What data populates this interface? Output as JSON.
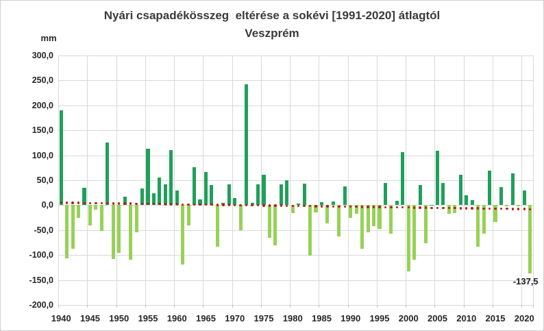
{
  "header": {
    "title": "Nyári csapadékösszeg  eltérése a sokévi [1991-2020] átlagtól",
    "subtitle": "Veszprém",
    "unit_label": "mm"
  },
  "annotation": {
    "text": "-137,5",
    "year": 2021
  },
  "colors": {
    "positive_bar": "#1fa05a",
    "negative_bar": "#97d156",
    "trend_dots": "#b22318",
    "gridline": "#d9d9d9",
    "text": "#262626",
    "background": "#ffffff"
  },
  "chart_data": {
    "type": "bar",
    "title": "Nyári csapadékösszeg eltérése a sokévi [1991-2020] átlagtól",
    "subtitle": "Veszprém",
    "ylabel": "mm",
    "ylim": [
      -200,
      300
    ],
    "ytick_step": 50,
    "ytick_labels": [
      "300,0",
      "250,0",
      "200,0",
      "150,0",
      "100,0",
      "50,0",
      "0,0",
      "-50,0",
      "-100,0",
      "-150,0",
      "-200,0"
    ],
    "xtick_labels": [
      "1940",
      "1945",
      "1950",
      "1955",
      "1960",
      "1965",
      "1970",
      "1975",
      "1980",
      "1985",
      "1990",
      "1995",
      "2000",
      "2005",
      "2010",
      "2015",
      "2020"
    ],
    "grid": true,
    "legend": "none",
    "x_start_year": 1940,
    "x_end_year": 2021,
    "values": [
      190,
      -106,
      -87,
      -26,
      35,
      -41,
      -9,
      -52,
      125,
      -108,
      -96,
      17,
      -110,
      -55,
      34,
      113,
      24,
      55,
      42,
      111,
      29,
      -119,
      -41,
      76,
      12,
      67,
      40,
      -83,
      5,
      42,
      14,
      -50,
      242,
      4,
      42,
      61,
      -66,
      -80,
      42,
      50,
      -16,
      3,
      43,
      -101,
      -14,
      6,
      -36,
      7,
      -63,
      37,
      -26,
      -18,
      -88,
      -55,
      -42,
      -47,
      44,
      -57,
      9,
      106,
      -133,
      -110,
      41,
      -76,
      1,
      109,
      45,
      -17,
      -16,
      61,
      20,
      10,
      -83,
      -57,
      69,
      -34,
      36,
      -2,
      64,
      -2,
      29,
      -137.5
    ],
    "last_point_label": "-137,5",
    "trend_line": {
      "style": "dotted",
      "color": "#b22318",
      "start_value": 5,
      "end_value": -8
    }
  }
}
